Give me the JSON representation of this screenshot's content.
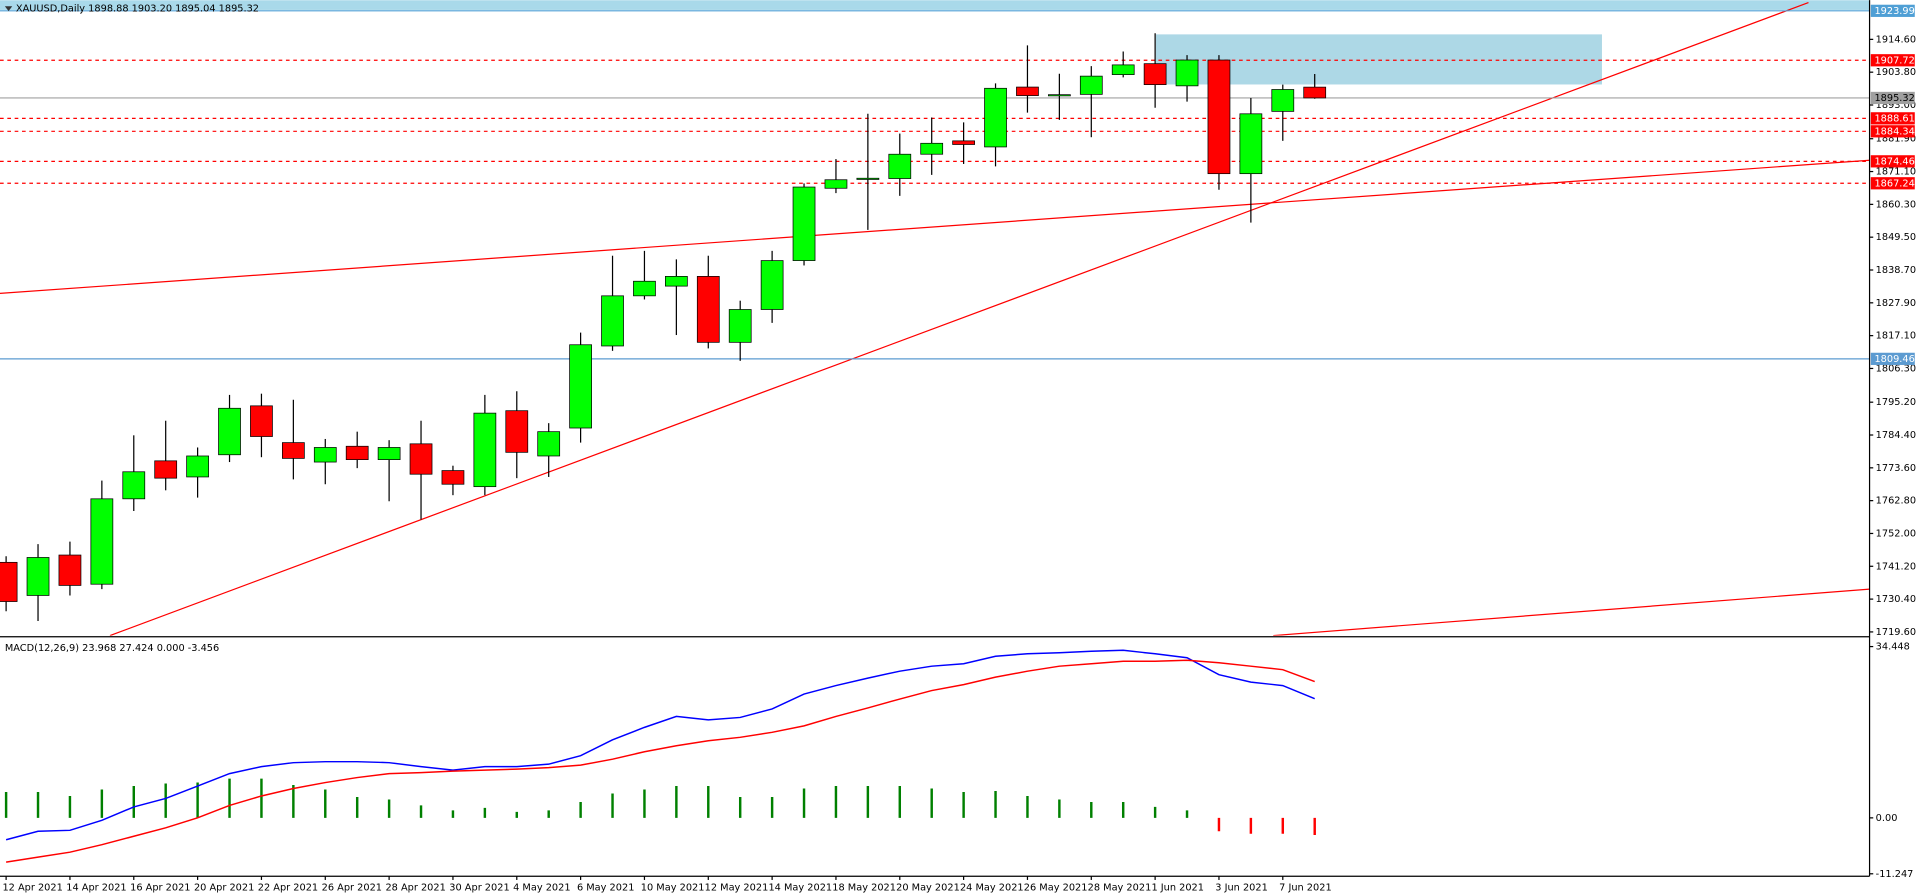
{
  "chart_data": [
    {
      "type": "candlestick",
      "title": "XAUUSD,Daily  1898.88 1903.20 1895.04 1895.32",
      "categories": [
        "12 Apr 2021",
        null,
        "14 Apr 2021",
        null,
        "16 Apr 2021",
        null,
        "20 Apr 2021",
        null,
        "22 Apr 2021",
        null,
        "26 Apr 2021",
        null,
        "28 Apr 2021",
        null,
        "30 Apr 2021",
        null,
        "4 May 2021",
        null,
        "6 May 2021",
        null,
        "10 May 2021",
        null,
        "12 May 2021",
        null,
        "14 May 2021",
        null,
        "18 May 2021",
        null,
        "20 May 2021",
        null,
        "24 May 2021",
        null,
        "26 May 2021",
        null,
        "28 May 2021",
        null,
        "1 Jun 2021",
        null,
        "3 Jun 2021",
        null,
        "7 Jun 2021",
        null
      ],
      "open": [
        1742.5,
        1731.6,
        1744.9,
        1735.3,
        1763.4,
        1775.9,
        1770.6,
        1777.9,
        1794.0,
        1781.9,
        1775.5,
        1780.7,
        1776.3,
        1781.5,
        1772.7,
        1767.4,
        1792.4,
        1777.5,
        1786.7,
        1813.7,
        1830.2,
        1833.4,
        1836.6,
        1814.9,
        1825.7,
        1841.8,
        1865.6,
        1868.6,
        1868.8,
        1876.8,
        1881.2,
        1879.2,
        1898.9,
        1896.2,
        1896.5,
        1903.0,
        1906.6,
        1899.3,
        1907.8,
        1870.4,
        1890.9,
        1898.88
      ],
      "high": [
        1744.5,
        1748.5,
        1749.3,
        1769.4,
        1784.3,
        1789.1,
        1780.3,
        1797.6,
        1798.0,
        1796.0,
        1783.1,
        1785.5,
        1782.7,
        1789.1,
        1774.3,
        1797.6,
        1798.8,
        1788.3,
        1818.1,
        1843.4,
        1845.0,
        1842.2,
        1843.4,
        1828.6,
        1845.0,
        1867.2,
        1875.2,
        1890.1,
        1883.6,
        1888.9,
        1887.3,
        1900.1,
        1912.6,
        1903.3,
        1905.8,
        1910.6,
        1916.6,
        1909.4,
        1909.4,
        1895.3,
        1899.7,
        1903.2
      ],
      "low": [
        1726.4,
        1723.2,
        1731.6,
        1733.7,
        1759.4,
        1766.2,
        1763.8,
        1775.5,
        1777.1,
        1769.8,
        1768.2,
        1773.5,
        1762.6,
        1756.6,
        1764.6,
        1764.6,
        1770.2,
        1770.6,
        1781.9,
        1812.1,
        1829.0,
        1817.3,
        1812.9,
        1808.8,
        1821.3,
        1840.2,
        1864.0,
        1851.9,
        1863.1,
        1870.0,
        1873.6,
        1872.8,
        1890.5,
        1888.1,
        1882.4,
        1902.1,
        1892.1,
        1894.1,
        1865.1,
        1854.3,
        1881.2,
        1895.04
      ],
      "close": [
        1729.6,
        1744.1,
        1734.9,
        1763.4,
        1772.3,
        1770.2,
        1777.5,
        1793.2,
        1783.9,
        1776.7,
        1780.3,
        1776.3,
        1780.3,
        1771.5,
        1768.2,
        1791.6,
        1778.7,
        1785.5,
        1814.1,
        1830.2,
        1835.0,
        1836.6,
        1814.9,
        1825.7,
        1841.8,
        1866.0,
        1868.4,
        1868.9,
        1876.8,
        1880.4,
        1880.0,
        1898.5,
        1896.1,
        1896.4,
        1902.5,
        1906.2,
        1899.7,
        1907.8,
        1870.4,
        1890.1,
        1898.1,
        1895.32
      ],
      "up_color": "#00ff00",
      "down_color": "#ff0000",
      "ylim": [
        1718.4,
        1927.5
      ],
      "yticks": [
        {
          "value": 1914.6,
          "label": "1914.60"
        },
        {
          "value": 1903.8,
          "label": "1903.80"
        },
        {
          "value": 1893.0,
          "label": "1893.00"
        },
        {
          "value": 1881.9,
          "label": "1881.90"
        },
        {
          "value": 1871.1,
          "label": "1871.10"
        },
        {
          "value": 1860.3,
          "label": "1860.30"
        },
        {
          "value": 1849.5,
          "label": "1849.50"
        },
        {
          "value": 1838.7,
          "label": "1838.70"
        },
        {
          "value": 1827.9,
          "label": "1827.90"
        },
        {
          "value": 1817.1,
          "label": "1817.10"
        },
        {
          "value": 1806.3,
          "label": "1806.30"
        },
        {
          "value": 1795.2,
          "label": "1795.20"
        },
        {
          "value": 1784.4,
          "label": "1784.40"
        },
        {
          "value": 1773.6,
          "label": "1773.60"
        },
        {
          "value": 1762.8,
          "label": "1762.80"
        },
        {
          "value": 1752.0,
          "label": "1752.00"
        },
        {
          "value": 1741.2,
          "label": "1741.20"
        },
        {
          "value": 1730.4,
          "label": "1730.40"
        },
        {
          "value": 1719.6,
          "label": "1719.60"
        }
      ],
      "levels": [
        {
          "value": 1923.99,
          "color": "#4f9fd5",
          "style": "solid",
          "text_color": "#ffffff"
        },
        {
          "value": 1907.72,
          "color": "#ff0000",
          "style": "dashed",
          "text_color": "#ffffff"
        },
        {
          "value": 1895.32,
          "color": "#a0a0a0",
          "style": "solid",
          "text_color": "#000000"
        },
        {
          "value": 1888.61,
          "color": "#ff0000",
          "style": "dashed",
          "text_color": "#ffffff"
        },
        {
          "value": 1884.34,
          "color": "#ff0000",
          "style": "dashed",
          "text_color": "#ffffff"
        },
        {
          "value": 1874.46,
          "color": "#ff0000",
          "style": "dashed",
          "text_color": "#ffffff"
        },
        {
          "value": 1867.24,
          "color": "#ff0000",
          "style": "dashed",
          "text_color": "#ffffff"
        },
        {
          "value": 1809.46,
          "color": "#5c9bd1",
          "style": "solid",
          "text_color": "#ffffff"
        }
      ],
      "grid": false
    },
    {
      "type": "macd",
      "title": "MACD(12,26,9) 23.968 27.424 0.000 -3.456",
      "ylim": [
        -11.75,
        36.17
      ],
      "yticks": [
        34.448,
        {
          "value": 0,
          "label": "0.00"
        },
        -11.247
      ],
      "series": [
        {
          "style": "histogram",
          "color": "#008000",
          "negative_color": "#ff0000",
          "values": [
            5.2,
            5.2,
            4.4,
            5.7,
            6.4,
            6.9,
            7.1,
            7.9,
            7.9,
            6.6,
            5.7,
            4.2,
            3.7,
            2.5,
            1.5,
            2.0,
            1.2,
            1.5,
            3.2,
            4.9,
            5.7,
            6.4,
            6.4,
            4.2,
            4.2,
            5.9,
            6.4,
            6.4,
            6.4,
            5.9,
            5.2,
            5.4,
            4.4,
            3.7,
            3.2,
            3.2,
            2.2,
            1.5,
            -2.7,
            -3.2,
            -3.2,
            -3.456
          ]
        },
        {
          "style": "line",
          "color": "#0000ff",
          "values": [
            -4.4,
            -2.7,
            -2.5,
            -0.5,
            2.2,
            3.9,
            6.4,
            8.9,
            10.3,
            11.1,
            11.3,
            11.3,
            11.1,
            10.3,
            9.6,
            10.3,
            10.3,
            10.8,
            12.5,
            15.7,
            18.2,
            20.4,
            19.7,
            20.2,
            21.9,
            24.9,
            26.6,
            28.1,
            29.5,
            30.5,
            31.0,
            32.5,
            33.0,
            33.2,
            33.5,
            33.7,
            33.0,
            32.2,
            28.8,
            27.3,
            26.6,
            23.968
          ]
        },
        {
          "style": "line",
          "color": "#ff0000",
          "values": [
            -8.9,
            -7.9,
            -6.9,
            -5.4,
            -3.7,
            -2.0,
            0,
            2.5,
            4.4,
            5.9,
            7.1,
            8.1,
            8.9,
            9.1,
            9.4,
            9.6,
            9.8,
            10.1,
            10.6,
            11.8,
            13.3,
            14.5,
            15.5,
            16.2,
            17.2,
            18.5,
            20.4,
            22.1,
            23.9,
            25.6,
            26.8,
            28.3,
            29.5,
            30.5,
            31.0,
            31.5,
            31.5,
            31.7,
            31.2,
            30.5,
            29.8,
            27.424
          ]
        }
      ],
      "grid": false
    }
  ]
}
